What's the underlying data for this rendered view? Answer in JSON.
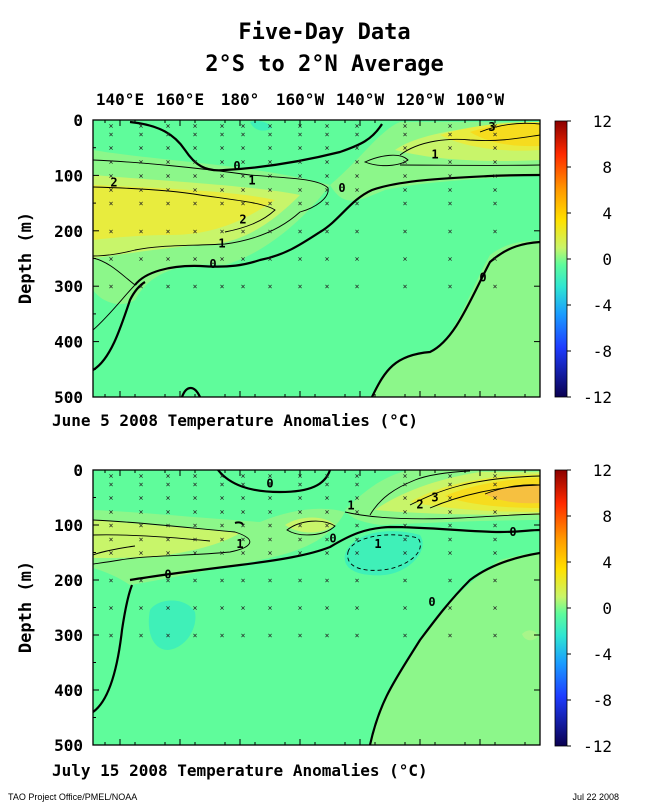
{
  "title": "Five-Day Data",
  "subtitle": "2°S to 2°N Average",
  "footer_left": "TAO Project Office/PMEL/NOAA",
  "footer_right": "Jul 22 2008",
  "colors": {
    "background_anomaly": "#5ffc9b",
    "warm_1": "#8cf78a",
    "warm_2": "#c8f56a",
    "warm_3": "#e8ec3e",
    "warm_4": "#f6dc1e",
    "warm_5": "#f6c040",
    "cool_1": "#3ff0b8",
    "contour": "#000000"
  },
  "chart_data": [
    {
      "type": "heatmap",
      "panel": "top",
      "title": "June 5 2008 Temperature Anomalies (°C)",
      "xlabel": "",
      "ylabel": "Depth (m)",
      "x_ticks": [
        "140°E",
        "160°E",
        "180°",
        "160°W",
        "140°W",
        "120°W",
        "100°W"
      ],
      "x_tick_lon": [
        140,
        160,
        180,
        200,
        220,
        240,
        260
      ],
      "xlim": [
        131,
        280
      ],
      "y_ticks": [
        0,
        100,
        200,
        300,
        400,
        500
      ],
      "ylim": [
        0,
        500
      ],
      "colorbar": {
        "ticks": [
          12,
          8,
          4,
          0,
          -4,
          -8,
          -12
        ],
        "range": [
          -12,
          12
        ]
      },
      "contour_labels": [
        {
          "text": "3",
          "lon": 264,
          "depth": 18
        },
        {
          "text": "1",
          "lon": 245,
          "depth": 68
        },
        {
          "text": "0",
          "lon": 179,
          "depth": 88
        },
        {
          "text": "1",
          "lon": 184,
          "depth": 115
        },
        {
          "text": "2",
          "lon": 138,
          "depth": 118
        },
        {
          "text": "0",
          "lon": 214,
          "depth": 128
        },
        {
          "text": "2",
          "lon": 181,
          "depth": 185
        },
        {
          "text": "1",
          "lon": 174,
          "depth": 228
        },
        {
          "text": "0",
          "lon": 171,
          "depth": 265
        },
        {
          "text": "0",
          "lon": 261,
          "depth": 290
        }
      ],
      "sample_lon": [
        137,
        147,
        156,
        165,
        174,
        181,
        190,
        200,
        209,
        219,
        235,
        250,
        265
      ],
      "sample_depth": [
        10,
        25,
        50,
        75,
        100,
        125,
        150,
        200,
        250,
        300
      ]
    },
    {
      "type": "heatmap",
      "panel": "bottom",
      "title": "July 15 2008 Temperature Anomalies (°C)",
      "xlabel": "",
      "ylabel": "Depth (m)",
      "x_ticks": [],
      "x_tick_lon": [
        140,
        160,
        180,
        200,
        220,
        240,
        260
      ],
      "xlim": [
        131,
        280
      ],
      "y_ticks": [
        0,
        100,
        200,
        300,
        400,
        500
      ],
      "ylim": [
        0,
        500
      ],
      "colorbar": {
        "ticks": [
          12,
          8,
          4,
          0,
          -4,
          -8,
          -12
        ],
        "range": [
          -12,
          12
        ]
      },
      "contour_labels": [
        {
          "text": "0",
          "lon": 190,
          "depth": 30
        },
        {
          "text": "1",
          "lon": 217,
          "depth": 70
        },
        {
          "text": "2",
          "lon": 240,
          "depth": 68
        },
        {
          "text": "3",
          "lon": 245,
          "depth": 55
        },
        {
          "text": "0",
          "lon": 271,
          "depth": 118
        },
        {
          "text": "1",
          "lon": 180,
          "depth": 140
        },
        {
          "text": "0",
          "lon": 211,
          "depth": 130
        },
        {
          "text": "1",
          "lon": 226,
          "depth": 140
        },
        {
          "text": "0",
          "lon": 156,
          "depth": 195
        },
        {
          "text": "0",
          "lon": 244,
          "depth": 245
        }
      ],
      "sample_lon": [
        137,
        147,
        156,
        165,
        174,
        181,
        190,
        200,
        209,
        219,
        235,
        250,
        265
      ],
      "sample_depth": [
        10,
        25,
        50,
        75,
        100,
        125,
        150,
        200,
        250,
        300
      ]
    }
  ]
}
